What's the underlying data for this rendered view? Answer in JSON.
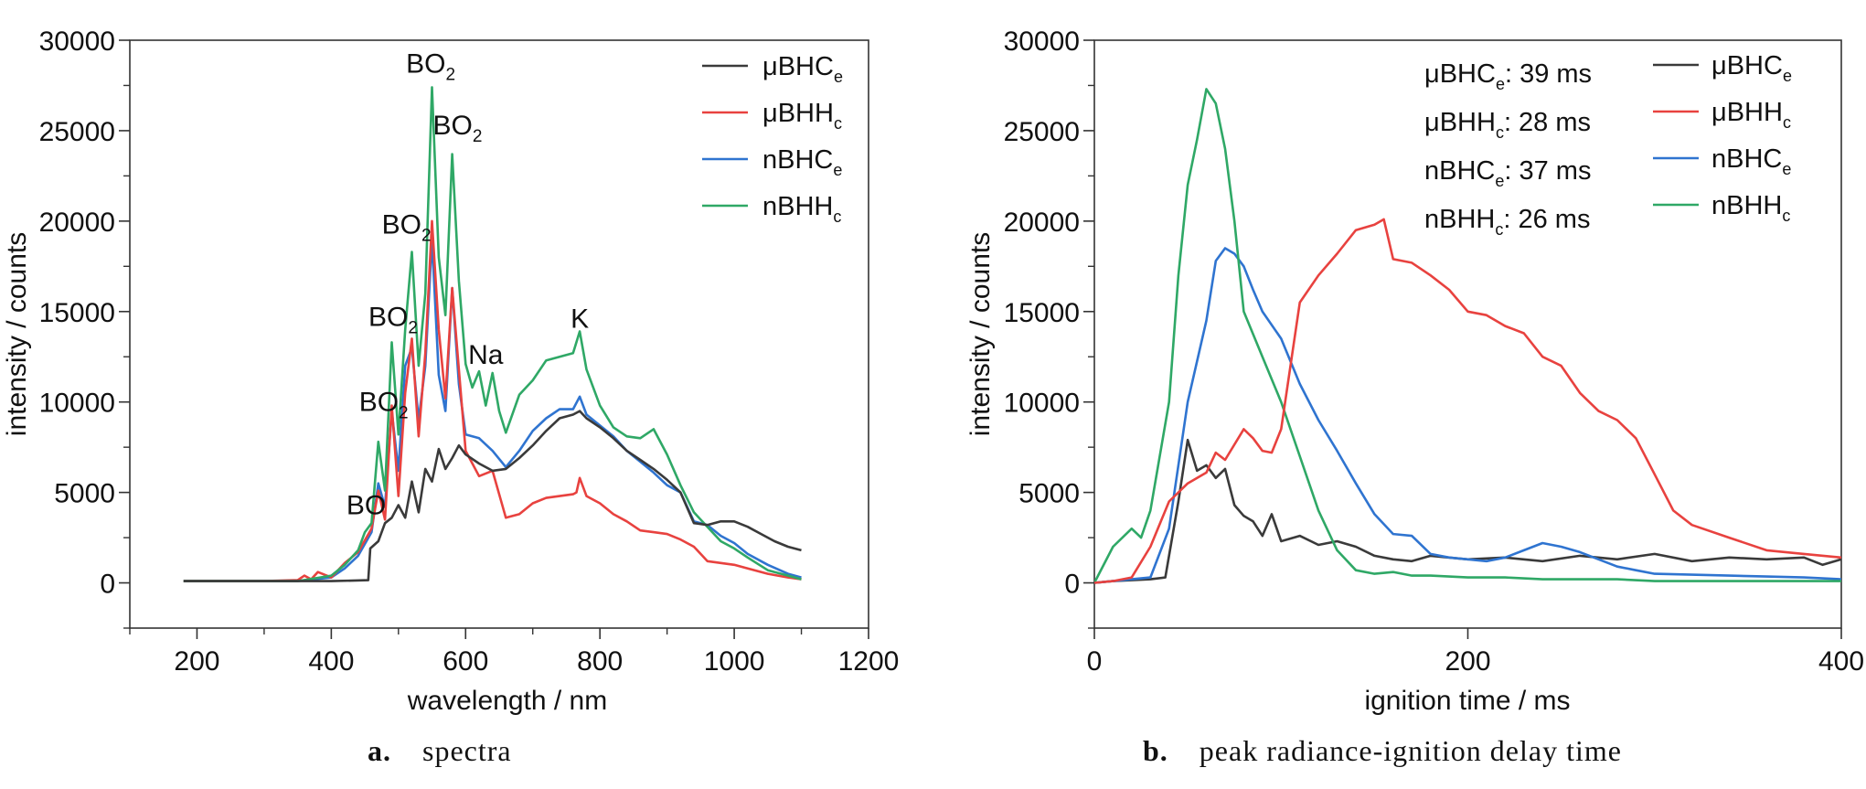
{
  "colors": {
    "muBHCe": "#3a3a3a",
    "muBHHc": "#e8423f",
    "nBHCe": "#2f74d0",
    "nBHHc": "#2fa866",
    "axis": "#333333"
  },
  "captions": [
    {
      "letter": "a.",
      "text": "spectra"
    },
    {
      "letter": "b.",
      "text": "peak radiance-ignition delay time"
    }
  ],
  "chart_data": [
    {
      "type": "line",
      "xlabel": "wavelength / nm",
      "ylabel": "intensity / counts",
      "xlim": [
        100,
        1200
      ],
      "ylim": [
        -2500,
        30000
      ],
      "xticks": [
        200,
        400,
        600,
        800,
        1000,
        1200
      ],
      "yticks": [
        0,
        5000,
        10000,
        15000,
        20000,
        25000,
        30000
      ],
      "legend": {
        "placement": "top-right",
        "entries": [
          {
            "key": "muBHCe",
            "base": "μBHC",
            "sub": "e"
          },
          {
            "key": "muBHHc",
            "base": "μBHH",
            "sub": "c"
          },
          {
            "key": "nBHCe",
            "base": "nBHC",
            "sub": "e"
          },
          {
            "key": "nBHHc",
            "base": "nBHH",
            "sub": "c"
          }
        ]
      },
      "annotations": [
        {
          "base": "BO",
          "sub": "",
          "x": 452,
          "y": 3800
        },
        {
          "base": "BO",
          "sub": "2",
          "x": 478,
          "y": 9500
        },
        {
          "base": "BO",
          "sub": "2",
          "x": 492,
          "y": 14200
        },
        {
          "base": "BO",
          "sub": "2",
          "x": 512,
          "y": 19300
        },
        {
          "base": "BO",
          "sub": "2",
          "x": 548,
          "y": 28200
        },
        {
          "base": "BO",
          "sub": "2",
          "x": 588,
          "y": 24800
        },
        {
          "base": "Na",
          "sub": "",
          "x": 630,
          "y": 12100
        },
        {
          "base": "K",
          "sub": "",
          "x": 770,
          "y": 14100
        }
      ],
      "series": [
        {
          "key": "muBHCe",
          "x": [
            180,
            300,
            400,
            455,
            458,
            470,
            480,
            490,
            500,
            510,
            520,
            530,
            540,
            550,
            560,
            570,
            580,
            590,
            600,
            620,
            640,
            660,
            680,
            700,
            720,
            740,
            760,
            770,
            780,
            800,
            820,
            840,
            860,
            880,
            900,
            920,
            940,
            960,
            980,
            1000,
            1020,
            1040,
            1060,
            1080,
            1100
          ],
          "y": [
            100,
            100,
            100,
            150,
            1900,
            2300,
            3300,
            3600,
            4300,
            3600,
            5600,
            3900,
            6300,
            5600,
            7400,
            6300,
            6900,
            7600,
            7100,
            6600,
            6200,
            6300,
            6900,
            7600,
            8400,
            9100,
            9300,
            9500,
            9100,
            8600,
            8000,
            7300,
            6800,
            6300,
            5700,
            5000,
            3300,
            3200,
            3400,
            3400,
            3100,
            2700,
            2300,
            2000,
            1800
          ]
        },
        {
          "key": "muBHHc",
          "x": [
            180,
            300,
            350,
            360,
            370,
            380,
            400,
            420,
            440,
            460,
            470,
            480,
            490,
            500,
            510,
            520,
            530,
            540,
            550,
            560,
            570,
            580,
            590,
            600,
            620,
            640,
            660,
            680,
            700,
            720,
            740,
            760,
            765,
            770,
            780,
            800,
            820,
            840,
            860,
            880,
            900,
            920,
            940,
            950,
            960,
            980,
            1000,
            1020,
            1050,
            1080,
            1100
          ],
          "y": [
            100,
            100,
            150,
            400,
            200,
            600,
            300,
            1100,
            1700,
            3000,
            5100,
            3500,
            9800,
            4800,
            10500,
            13500,
            8100,
            12700,
            20000,
            14000,
            10200,
            16300,
            11800,
            7300,
            5900,
            6200,
            3600,
            3800,
            4400,
            4700,
            4800,
            4900,
            5000,
            5800,
            4800,
            4400,
            3800,
            3400,
            2900,
            2800,
            2700,
            2400,
            2000,
            1600,
            1200,
            1100,
            1000,
            800,
            500,
            300,
            200
          ]
        },
        {
          "key": "nBHCe",
          "x": [
            180,
            300,
            350,
            400,
            420,
            440,
            460,
            470,
            480,
            490,
            500,
            510,
            520,
            530,
            540,
            550,
            560,
            570,
            580,
            590,
            600,
            620,
            640,
            660,
            680,
            700,
            720,
            740,
            760,
            770,
            780,
            800,
            820,
            840,
            860,
            880,
            900,
            920,
            940,
            960,
            980,
            1000,
            1020,
            1050,
            1080,
            1100
          ],
          "y": [
            100,
            100,
            100,
            300,
            800,
            1500,
            2800,
            5500,
            4200,
            9500,
            6200,
            12000,
            13000,
            9000,
            12000,
            19000,
            11500,
            9500,
            16300,
            11000,
            8200,
            8000,
            7300,
            6400,
            7300,
            8400,
            9100,
            9600,
            9600,
            10300,
            9300,
            8700,
            8100,
            7300,
            6700,
            6100,
            5400,
            5000,
            3400,
            3200,
            2600,
            2200,
            1600,
            1000,
            500,
            300
          ]
        },
        {
          "key": "nBHHc",
          "x": [
            180,
            300,
            350,
            400,
            420,
            440,
            450,
            460,
            470,
            480,
            490,
            500,
            510,
            520,
            530,
            540,
            550,
            560,
            570,
            580,
            590,
            600,
            610,
            620,
            630,
            640,
            650,
            660,
            680,
            700,
            720,
            740,
            760,
            770,
            780,
            800,
            820,
            840,
            860,
            880,
            900,
            920,
            940,
            960,
            980,
            1000,
            1020,
            1050,
            1080,
            1100
          ],
          "y": [
            100,
            100,
            100,
            400,
            1000,
            1800,
            2800,
            3300,
            7800,
            5100,
            13300,
            8200,
            14000,
            18300,
            12000,
            16000,
            27400,
            18000,
            14800,
            23700,
            16700,
            12100,
            10800,
            11700,
            9800,
            11600,
            9500,
            8300,
            10400,
            11200,
            12300,
            12500,
            12700,
            13900,
            11800,
            9800,
            8600,
            8100,
            8000,
            8500,
            7100,
            5400,
            3900,
            3100,
            2300,
            1900,
            1400,
            700,
            400,
            200
          ]
        }
      ]
    },
    {
      "type": "line",
      "xlabel": "ignition time / ms",
      "ylabel": "intensity / counts",
      "xlim": [
        0,
        400
      ],
      "ylim": [
        -2500,
        30000
      ],
      "xticks": [
        0,
        200,
        400
      ],
      "yticks": [
        0,
        5000,
        10000,
        15000,
        20000,
        25000,
        30000
      ],
      "legend": {
        "placement": "top-right",
        "entries": [
          {
            "key": "muBHCe",
            "base": "μBHC",
            "sub": "e"
          },
          {
            "key": "muBHHc",
            "base": "μBHH",
            "sub": "c"
          },
          {
            "key": "nBHCe",
            "base": "nBHC",
            "sub": "e"
          },
          {
            "key": "nBHHc",
            "base": "nBHH",
            "sub": "c"
          }
        ]
      },
      "delay_times": [
        {
          "base": "μBHC",
          "sub": "e",
          "text": ": 39 ms"
        },
        {
          "base": "μBHH",
          "sub": "c",
          "text": ": 28 ms"
        },
        {
          "base": "nBHC",
          "sub": "e",
          "text": ": 37 ms"
        },
        {
          "base": "nBHH",
          "sub": "c",
          "text": ": 26 ms"
        }
      ],
      "series": [
        {
          "key": "muBHCe",
          "x": [
            0,
            10,
            20,
            30,
            38,
            45,
            50,
            55,
            60,
            65,
            70,
            75,
            80,
            85,
            90,
            95,
            100,
            110,
            120,
            130,
            140,
            150,
            160,
            170,
            180,
            200,
            220,
            240,
            260,
            280,
            300,
            320,
            340,
            360,
            380,
            390,
            400
          ],
          "y": [
            0,
            100,
            150,
            200,
            300,
            4500,
            7900,
            6200,
            6500,
            5800,
            6300,
            4300,
            3700,
            3400,
            2600,
            3800,
            2300,
            2600,
            2100,
            2300,
            2000,
            1500,
            1300,
            1200,
            1500,
            1300,
            1400,
            1200,
            1500,
            1300,
            1600,
            1200,
            1400,
            1300,
            1400,
            1000,
            1300
          ]
        },
        {
          "key": "muBHHc",
          "x": [
            0,
            10,
            20,
            30,
            40,
            50,
            60,
            65,
            70,
            80,
            85,
            90,
            95,
            100,
            110,
            120,
            130,
            140,
            150,
            155,
            160,
            170,
            180,
            190,
            200,
            210,
            220,
            230,
            240,
            250,
            260,
            270,
            280,
            290,
            300,
            310,
            320,
            340,
            360,
            380,
            400
          ],
          "y": [
            0,
            100,
            300,
            2000,
            4500,
            5500,
            6100,
            7200,
            6800,
            8500,
            8000,
            7300,
            7200,
            8500,
            15500,
            17000,
            18200,
            19500,
            19800,
            20100,
            17900,
            17700,
            17000,
            16200,
            15000,
            14800,
            14200,
            13800,
            12500,
            12000,
            10500,
            9500,
            9000,
            8000,
            6000,
            4000,
            3200,
            2500,
            1800,
            1600,
            1400
          ]
        },
        {
          "key": "nBHCe",
          "x": [
            0,
            10,
            20,
            30,
            40,
            50,
            60,
            65,
            70,
            75,
            80,
            85,
            90,
            100,
            110,
            120,
            130,
            140,
            150,
            160,
            170,
            180,
            190,
            200,
            210,
            220,
            230,
            240,
            250,
            260,
            270,
            280,
            290,
            300,
            320,
            340,
            360,
            380,
            400
          ],
          "y": [
            0,
            100,
            200,
            300,
            3000,
            10000,
            14500,
            17800,
            18500,
            18200,
            17500,
            16200,
            15000,
            13500,
            11000,
            9000,
            7300,
            5500,
            3800,
            2700,
            2600,
            1600,
            1400,
            1300,
            1200,
            1400,
            1800,
            2200,
            2000,
            1700,
            1300,
            900,
            700,
            500,
            450,
            400,
            350,
            300,
            200
          ]
        },
        {
          "key": "nBHHc",
          "x": [
            0,
            10,
            20,
            25,
            30,
            40,
            45,
            50,
            55,
            60,
            65,
            70,
            75,
            80,
            90,
            100,
            110,
            120,
            130,
            140,
            150,
            160,
            170,
            180,
            200,
            220,
            240,
            260,
            280,
            300,
            320,
            340,
            360,
            380,
            400
          ],
          "y": [
            0,
            2000,
            3000,
            2500,
            4000,
            10000,
            17000,
            22000,
            24500,
            27300,
            26500,
            24000,
            20000,
            15000,
            12500,
            10000,
            7000,
            4000,
            1800,
            700,
            500,
            600,
            400,
            400,
            300,
            300,
            200,
            200,
            200,
            100,
            100,
            100,
            100,
            100,
            100
          ]
        }
      ]
    }
  ]
}
